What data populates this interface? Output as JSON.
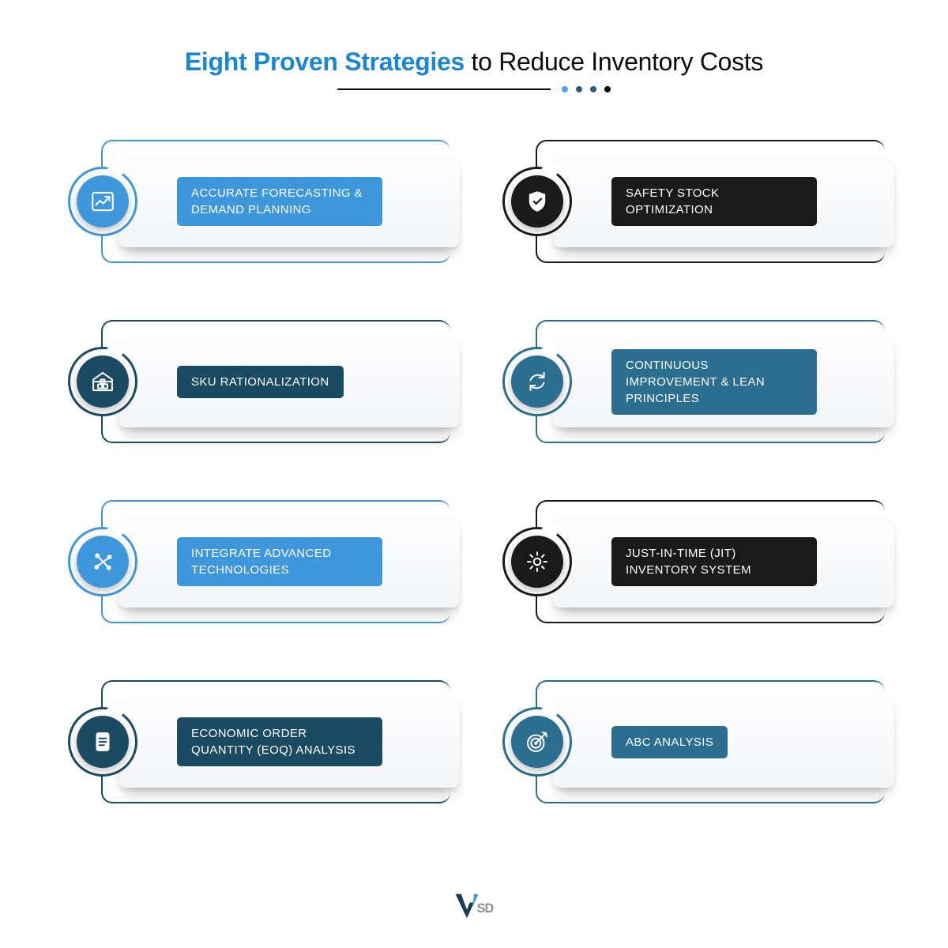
{
  "title": {
    "accent": "Eight Proven Strategies",
    "rest": " to Reduce Inventory Costs",
    "accent_color": "#1b86d3",
    "text_color": "#0a0a0a",
    "fontsize": 32
  },
  "dots_colors": [
    "#4aa3e0",
    "#2c5a78",
    "#2c5a78",
    "#0a0a0a"
  ],
  "colors": {
    "accent_blue": "#3f97db",
    "navy": "#1c4a63",
    "black": "#1a1a1a",
    "teal": "#2c6e8f",
    "panel_shadow": "rgba(0,0,0,0.2)"
  },
  "cards": [
    {
      "label": "ACCURATE FORECASTING & DEMAND PLANNING",
      "icon": "trend-up",
      "circle_bg": "#3f97db",
      "pill_bg": "#3f97db",
      "frame_color": "#3f97db"
    },
    {
      "label": "SAFETY STOCK OPTIMIZATION",
      "icon": "shield",
      "circle_bg": "#1a1a1a",
      "pill_bg": "#1a1a1a",
      "frame_color": "#1a1a1a"
    },
    {
      "label": "SKU RATIONALIZATION",
      "icon": "warehouse",
      "circle_bg": "#1c4a63",
      "pill_bg": "#1c4a63",
      "frame_color": "#1c4a63"
    },
    {
      "label": "CONTINUOUS IMPROVEMENT & LEAN PRINCIPLES",
      "icon": "refresh",
      "circle_bg": "#2c6e8f",
      "pill_bg": "#2c6e8f",
      "frame_color": "#2c6e8f"
    },
    {
      "label": "INTEGRATE ADVANCED TECHNOLOGIES",
      "icon": "nodes",
      "circle_bg": "#3f97db",
      "pill_bg": "#3f97db",
      "frame_color": "#3f97db"
    },
    {
      "label": "JUST-IN-TIME (JIT) INVENTORY SYSTEM",
      "icon": "gear",
      "circle_bg": "#1a1a1a",
      "pill_bg": "#1a1a1a",
      "frame_color": "#1a1a1a"
    },
    {
      "label": "ECONOMIC ORDER QUANTITY (EOQ) ANALYSIS",
      "icon": "doc",
      "circle_bg": "#1c4a63",
      "pill_bg": "#1c4a63",
      "frame_color": "#1c4a63"
    },
    {
      "label": "ABC ANALYSIS",
      "icon": "target",
      "circle_bg": "#2c6e8f",
      "pill_bg": "#2c6e8f",
      "frame_color": "#2c6e8f"
    }
  ],
  "logo_text": "VSD"
}
